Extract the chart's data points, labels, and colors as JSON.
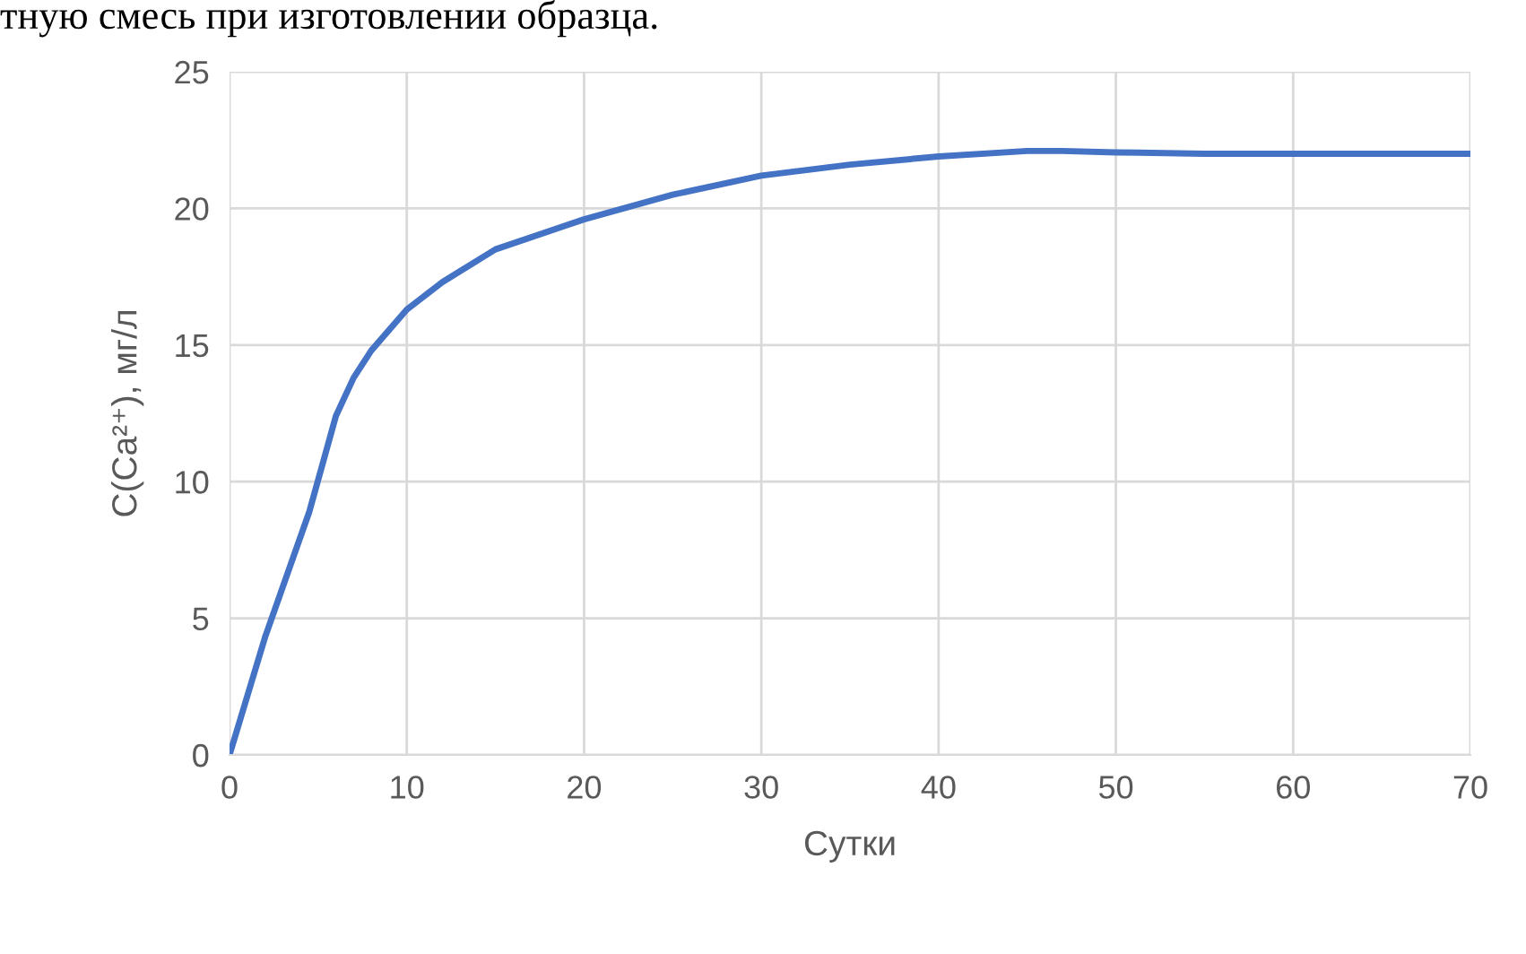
{
  "chart_data": {
    "type": "line",
    "xlabel": "Сутки",
    "ylabel": "C(Ca²⁺), мг/л",
    "annotations": [
      "тную смесь при изготовлении образца."
    ],
    "series": [
      {
        "color": "#4472c4",
        "x": [
          0,
          2,
          4.5,
          6,
          7,
          8,
          10,
          12,
          15,
          20,
          25,
          30,
          35,
          40,
          45,
          47,
          50,
          55,
          60,
          70
        ],
        "values": [
          0,
          4.3,
          8.9,
          12.4,
          13.8,
          14.8,
          16.3,
          17.3,
          18.5,
          19.6,
          20.5,
          21.2,
          21.6,
          21.9,
          22.1,
          22.1,
          22.05,
          22.0,
          22.0,
          22.0
        ]
      }
    ],
    "xlim": [
      0,
      70
    ],
    "xticks": [
      0,
      10,
      20,
      30,
      40,
      50,
      60,
      70
    ],
    "ylim": [
      0,
      25
    ],
    "yticks": [
      0,
      5,
      10,
      15,
      20,
      25
    ],
    "grid": true,
    "marker": "none",
    "line_style": "solid"
  }
}
